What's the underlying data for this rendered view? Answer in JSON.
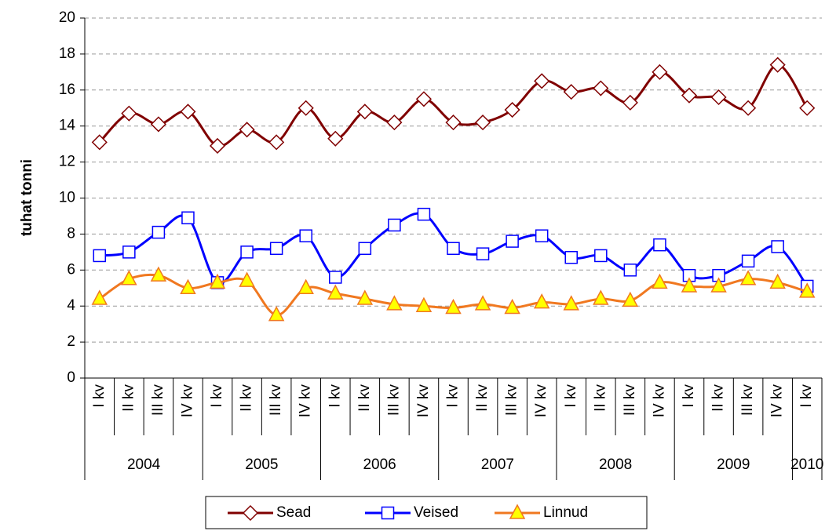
{
  "chart_data": {
    "type": "line",
    "y_label": "tuhat tonni",
    "categories": [
      "I kv",
      "II kv",
      "III kv",
      "IV kv",
      "I kv",
      "II kv",
      "III kv",
      "IV kv",
      "I kv",
      "II kv",
      "III kv",
      "IV kv",
      "I kv",
      "II kv",
      "III kv",
      "IV kv",
      "I kv",
      "II kv",
      "III kv",
      "IV kv",
      "I kv",
      "II kv",
      "III kv",
      "IV kv",
      "I kv"
    ],
    "year_groups": [
      {
        "name": "2004",
        "count": 4
      },
      {
        "name": "2005",
        "count": 4
      },
      {
        "name": "2006",
        "count": 4
      },
      {
        "name": "2007",
        "count": 4
      },
      {
        "name": "2008",
        "count": 4
      },
      {
        "name": "2009",
        "count": 4
      },
      {
        "name": "2010",
        "count": 1
      }
    ],
    "series": [
      {
        "name": "Sead",
        "color": "#800000",
        "marker": "diamond",
        "marker_fill": "#ffffff",
        "values": [
          13.1,
          14.7,
          14.1,
          14.8,
          12.9,
          13.8,
          13.1,
          15.0,
          13.3,
          14.8,
          14.2,
          15.5,
          14.2,
          14.2,
          14.9,
          16.5,
          15.9,
          16.1,
          15.3,
          17.0,
          15.7,
          15.6,
          15.0,
          17.4,
          15.0
        ]
      },
      {
        "name": "Veised",
        "color": "#0000ff",
        "marker": "square",
        "marker_fill": "#ffffff",
        "values": [
          6.8,
          7.0,
          8.1,
          8.9,
          5.3,
          7.0,
          7.2,
          7.9,
          5.6,
          7.2,
          8.5,
          9.1,
          7.2,
          6.9,
          7.6,
          7.9,
          6.7,
          6.8,
          6.0,
          7.4,
          5.7,
          5.7,
          6.5,
          7.3,
          5.1
        ]
      },
      {
        "name": "Linnud",
        "color": "#f07820",
        "marker": "triangle",
        "marker_fill": "#ffff00",
        "values": [
          4.4,
          5.5,
          5.7,
          5.0,
          5.3,
          5.4,
          3.5,
          5.0,
          4.7,
          4.4,
          4.1,
          4.0,
          3.9,
          4.1,
          3.9,
          4.2,
          4.1,
          4.4,
          4.3,
          5.3,
          5.1,
          5.1,
          5.5,
          5.3,
          4.8
        ]
      }
    ],
    "ylim": [
      0,
      20
    ],
    "yticks": [
      0,
      2,
      4,
      6,
      8,
      10,
      12,
      14,
      16,
      18,
      20
    ],
    "grid": true,
    "smooth": true,
    "legend": "bottom"
  }
}
